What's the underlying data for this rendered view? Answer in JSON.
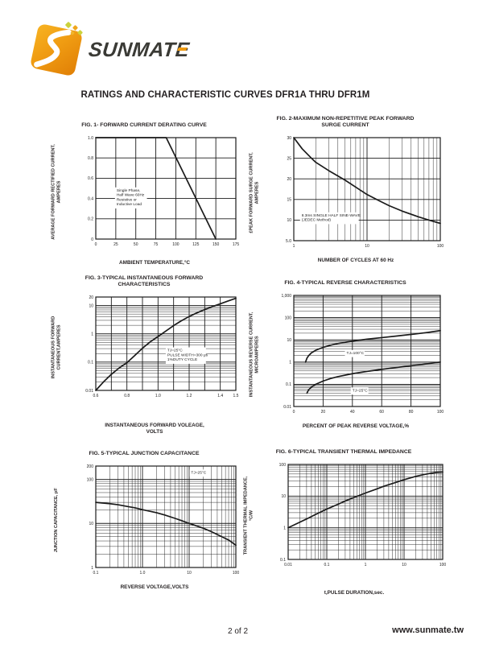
{
  "page": {
    "brand": "SUNMATE",
    "title": "RATINGS AND CHARACTERISTIC CURVES DFR1A THRU DFR1M",
    "footer_page": "2 of 2",
    "footer_site": "www.sunmate.tw"
  },
  "colors": {
    "line": "#1b1b1b",
    "logo_orange": "#f09c12",
    "logo_green": "#ccd23c",
    "text": "#231f20"
  },
  "chart_data": [
    {
      "id": "fig1",
      "type": "line",
      "title": "FIG. 1- FORWARD CURRENT DERATING CURVE",
      "ylabel": "AVERAGE FORWARD RECTIFIED CURRENT,\nAMPERES",
      "xlabel": "AMBIENT TEMPERATURE,°C",
      "xscale": "linear",
      "yscale": "linear",
      "xlim": [
        0,
        175
      ],
      "ylim": [
        0,
        1.0
      ],
      "xticks": [
        [
          0,
          "0"
        ],
        [
          25,
          "25"
        ],
        [
          50,
          "50"
        ],
        [
          75,
          "75"
        ],
        [
          100,
          "100"
        ],
        [
          125,
          "125"
        ],
        [
          150,
          "150"
        ],
        [
          175,
          "175"
        ]
      ],
      "yticks": [
        [
          0,
          "0"
        ],
        [
          0.2,
          "0.2"
        ],
        [
          0.4,
          "0.4"
        ],
        [
          0.6,
          "0.6"
        ],
        [
          0.8,
          "0.8"
        ],
        [
          1.0,
          "1.0"
        ]
      ],
      "series": [
        {
          "name": "forward-current-derating",
          "points": [
            [
              0,
              1.0
            ],
            [
              88,
              1.0
            ],
            [
              150,
              0
            ]
          ]
        }
      ],
      "annotations": [
        {
          "x": 26,
          "y": 0.47,
          "lines": [
            "Single Phase,",
            "Half Wave 60Hz",
            "Resistive or",
            "Inductive Load"
          ]
        }
      ]
    },
    {
      "id": "fig2",
      "type": "line",
      "title": "FIG. 2-MAXIMUM NON-REPETITIVE PEAK FORWARD\nSURGE CURRENT",
      "ylabel": "£PEAK  FORWARD SURGE CURRENT,\nAMPERES",
      "xlabel": "NUMBER OF CYCLES AT 60 Hz",
      "xscale": "log",
      "yscale": "linear",
      "xlim": [
        1,
        100
      ],
      "ylim": [
        5,
        30
      ],
      "xticks": [
        [
          1,
          "1"
        ],
        [
          10,
          "10"
        ],
        [
          100,
          "100"
        ]
      ],
      "yticks": [
        [
          5,
          "5.0"
        ],
        [
          10,
          "10"
        ],
        [
          15,
          "15"
        ],
        [
          20,
          "20"
        ],
        [
          25,
          "25"
        ],
        [
          30,
          "30"
        ]
      ],
      "series": [
        {
          "name": "peak-forward-surge-current",
          "points": [
            [
              1,
              30
            ],
            [
              1.3,
              27.3
            ],
            [
              1.7,
              25.2
            ],
            [
              2,
              24
            ],
            [
              3,
              22
            ],
            [
              4,
              20.7
            ],
            [
              5,
              19.7
            ],
            [
              7,
              18
            ],
            [
              10,
              16.2
            ],
            [
              15,
              14.6
            ],
            [
              20,
              13.5
            ],
            [
              30,
              12.2
            ],
            [
              50,
              10.8
            ],
            [
              70,
              10
            ],
            [
              100,
              9.2
            ]
          ]
        }
      ],
      "annotations": [
        {
          "x": 1.28,
          "y": 10.9,
          "lines": [
            "8.3ms SINGLE HALF SINE-WAVE",
            "(JEDEC Method)"
          ]
        }
      ]
    },
    {
      "id": "fig3",
      "type": "line",
      "title": "FIG. 3-TYPICAL INSTANTANEOUS FORWARD\nCHARACTERISTICS",
      "ylabel": "INSTANTANEOUS FORWARD\nCURRENT,AMPERES",
      "xlabel": "INSTANTANEOUS FORWARD VOLEAGE,\nVOLTS",
      "xscale": "linear",
      "yscale": "log",
      "xlim": [
        0.6,
        1.5
      ],
      "ylim": [
        0.01,
        20
      ],
      "xgrid_step": 0.1,
      "xticks": [
        [
          0.6,
          "0.6"
        ],
        [
          0.8,
          "0.8"
        ],
        [
          1.0,
          "1.0"
        ],
        [
          1.2,
          "1.2"
        ],
        [
          1.4,
          "1.4"
        ],
        [
          1.5,
          "1.5"
        ]
      ],
      "yticks": [
        [
          0.01,
          "0.01"
        ],
        [
          0.1,
          "0.1"
        ],
        [
          1,
          "1"
        ],
        [
          10,
          "10"
        ],
        [
          20,
          "20"
        ]
      ],
      "series": [
        {
          "name": "instantaneous-forward-current",
          "points": [
            [
              0.6,
              0.01
            ],
            [
              0.65,
              0.02
            ],
            [
              0.7,
              0.037
            ],
            [
              0.75,
              0.062
            ],
            [
              0.8,
              0.095
            ],
            [
              0.85,
              0.17
            ],
            [
              0.9,
              0.31
            ],
            [
              0.95,
              0.52
            ],
            [
              1.0,
              0.8
            ],
            [
              1.05,
              1.25
            ],
            [
              1.1,
              1.95
            ],
            [
              1.15,
              2.9
            ],
            [
              1.2,
              4.1
            ],
            [
              1.25,
              5.5
            ],
            [
              1.3,
              7.2
            ],
            [
              1.35,
              9.2
            ],
            [
              1.4,
              11.5
            ],
            [
              1.45,
              14.5
            ],
            [
              1.5,
              18
            ]
          ]
        }
      ],
      "annotations": [
        {
          "x": 1.06,
          "y": 0.24,
          "lines": [
            "TJ=25°C",
            "PULSE WIDTH=300 μs",
            "1%DUTY CYCLE"
          ]
        }
      ]
    },
    {
      "id": "fig4",
      "type": "line",
      "title": "FIG. 4-TYPICAL REVERSE CHARACTERISTICS",
      "ylabel": "INSTANTANEOUS REVERSE CURRENT,\nMICROAMPERES",
      "xlabel": "PERCENT OF PEAK REVERSE VOLTAGE,%",
      "xscale": "linear",
      "yscale": "log",
      "xlim": [
        0,
        100
      ],
      "ylim": [
        0.01,
        1000
      ],
      "xticks": [
        [
          0,
          "0"
        ],
        [
          20,
          "20"
        ],
        [
          40,
          "40"
        ],
        [
          60,
          "60"
        ],
        [
          80,
          "80"
        ],
        [
          100,
          "100"
        ]
      ],
      "yticks": [
        [
          0.01,
          "0.01"
        ],
        [
          0.1,
          "0.1"
        ],
        [
          1,
          "1"
        ],
        [
          10,
          "10"
        ],
        [
          100,
          "100"
        ],
        [
          1000,
          "1,000"
        ]
      ],
      "series": [
        {
          "name": "reverse-current-tj-100c",
          "points": [
            [
              8,
              1
            ],
            [
              9,
              1.5
            ],
            [
              10,
              1.9
            ],
            [
              12,
              2.6
            ],
            [
              15,
              3.4
            ],
            [
              20,
              4.6
            ],
            [
              25,
              5.7
            ],
            [
              30,
              6.8
            ],
            [
              40,
              8.8
            ],
            [
              50,
              10.7
            ],
            [
              60,
              12.6
            ],
            [
              70,
              14.8
            ],
            [
              80,
              17.5
            ],
            [
              90,
              21
            ],
            [
              100,
              26
            ]
          ]
        },
        {
          "name": "reverse-current-tj-25c",
          "points": [
            [
              9,
              0.04
            ],
            [
              10,
              0.055
            ],
            [
              12,
              0.075
            ],
            [
              15,
              0.1
            ],
            [
              20,
              0.14
            ],
            [
              25,
              0.18
            ],
            [
              30,
              0.22
            ],
            [
              40,
              0.3
            ],
            [
              50,
              0.38
            ],
            [
              60,
              0.47
            ],
            [
              70,
              0.57
            ],
            [
              80,
              0.68
            ],
            [
              90,
              0.82
            ],
            [
              100,
              1.0
            ]
          ]
        }
      ],
      "annotations": [
        {
          "x": 36,
          "y": 2.3,
          "lines": [
            "TJ=100°C"
          ]
        },
        {
          "x": 40,
          "y": 0.047,
          "lines": [
            "TJ=25°C"
          ]
        }
      ]
    },
    {
      "id": "fig5",
      "type": "line",
      "title": "FIG. 5-TYPICAL JUNCTION CAPACITANCE",
      "ylabel": "JUNCTION CAPACITANCE, pF",
      "xlabel": "REVERSE VOLTAGE,VOLTS",
      "xscale": "log",
      "yscale": "log",
      "xlim": [
        0.1,
        100
      ],
      "ylim": [
        1,
        200
      ],
      "xticks": [
        [
          0.1,
          "0.1"
        ],
        [
          1,
          "1.0"
        ],
        [
          10,
          "10"
        ],
        [
          100,
          "100"
        ]
      ],
      "yticks": [
        [
          1,
          "1"
        ],
        [
          10,
          "10"
        ],
        [
          100,
          "100"
        ],
        [
          200,
          "200"
        ]
      ],
      "series": [
        {
          "name": "junction-capacitance",
          "points": [
            [
              0.1,
              30
            ],
            [
              0.2,
              28
            ],
            [
              0.3,
              26.5
            ],
            [
              0.5,
              24
            ],
            [
              0.7,
              22.5
            ],
            [
              1,
              20.5
            ],
            [
              2,
              17.5
            ],
            [
              3,
              15.5
            ],
            [
              5,
              13
            ],
            [
              7,
              11.5
            ],
            [
              10,
              10
            ],
            [
              20,
              7.8
            ],
            [
              30,
              6.5
            ],
            [
              50,
              5
            ],
            [
              70,
              4.2
            ],
            [
              100,
              3.2
            ]
          ]
        }
      ],
      "annotations": [
        {
          "x": 11,
          "y": 135,
          "lines": [
            "TJ=25°C"
          ]
        }
      ]
    },
    {
      "id": "fig6",
      "type": "line",
      "title": "FIG. 6-TYPICAL TRANSIENT THERMAL IMPEDANCE",
      "ylabel": "TRANSIENT THERMAL IMPEDANCE,\n°C/W",
      "xlabel": "t,PULSE DURATION,sec.",
      "xscale": "log",
      "yscale": "log",
      "xlim": [
        0.01,
        100
      ],
      "ylim": [
        0.1,
        100
      ],
      "xticks": [
        [
          0.01,
          "0.01"
        ],
        [
          0.1,
          "0.1"
        ],
        [
          1,
          "1"
        ],
        [
          10,
          "10"
        ],
        [
          100,
          "100"
        ]
      ],
      "yticks": [
        [
          0.1,
          "0.1"
        ],
        [
          1,
          "1"
        ],
        [
          10,
          "10"
        ],
        [
          100,
          "100"
        ]
      ],
      "series": [
        {
          "name": "transient-thermal-impedance",
          "points": [
            [
              0.01,
              1
            ],
            [
              0.02,
              1.5
            ],
            [
              0.03,
              1.9
            ],
            [
              0.05,
              2.6
            ],
            [
              0.1,
              3.9
            ],
            [
              0.2,
              5.6
            ],
            [
              0.3,
              7
            ],
            [
              0.5,
              9
            ],
            [
              1,
              12.5
            ],
            [
              2,
              17
            ],
            [
              3,
              20.5
            ],
            [
              5,
              25
            ],
            [
              10,
              33
            ],
            [
              20,
              42
            ],
            [
              30,
              47
            ],
            [
              50,
              53
            ],
            [
              70,
              56
            ],
            [
              100,
              58
            ]
          ]
        }
      ],
      "annotations": []
    }
  ]
}
